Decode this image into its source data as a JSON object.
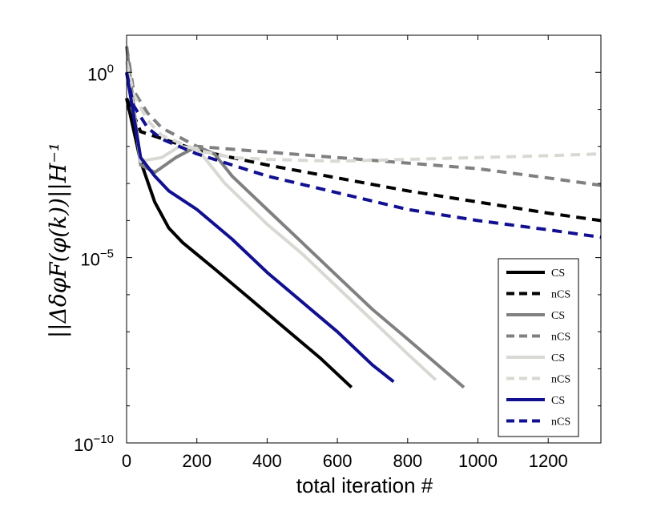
{
  "chart_data": {
    "type": "line",
    "title": "",
    "xlabel": "total iteration #",
    "ylabel": "||ΔδφF(φ(k))||H⁻¹",
    "yscale": "log",
    "xlim": [
      0,
      1350
    ],
    "ylim_exp": [
      -10,
      1
    ],
    "xticks": [
      0,
      200,
      400,
      600,
      800,
      1000,
      1200
    ],
    "xtick_labels": [
      "0",
      "200",
      "400",
      "600",
      "800",
      "1000",
      "1200"
    ],
    "yticks_exp": [
      0,
      -5,
      -10
    ],
    "ytick_base": "10",
    "ytick_exps": [
      "0",
      "−5",
      "−10"
    ],
    "legend_position": "bottom-right",
    "series": [
      {
        "name": "CS",
        "color": "#000000",
        "dash": false,
        "x": [
          0,
          40,
          80,
          120,
          160,
          250,
          350,
          450,
          550,
          640
        ],
        "log10_y": [
          -0.7,
          -2.4,
          -3.5,
          -4.2,
          -4.6,
          -5.3,
          -6.1,
          -6.9,
          -7.7,
          -8.5
        ]
      },
      {
        "name": "nCS",
        "color": "#000000",
        "dash": true,
        "x": [
          0,
          40,
          200,
          400,
          600,
          800,
          1000,
          1200,
          1350
        ],
        "log10_y": [
          -0.7,
          -1.6,
          -2.1,
          -2.5,
          -2.85,
          -3.2,
          -3.5,
          -3.8,
          -4.0
        ]
      },
      {
        "name": "CS",
        "color": "#808080",
        "dash": false,
        "x": [
          0,
          40,
          80,
          140,
          200,
          250,
          300,
          400,
          500,
          600,
          700,
          800,
          960
        ],
        "log10_y": [
          0.7,
          -2.5,
          -2.7,
          -2.3,
          -2.0,
          -2.2,
          -2.8,
          -3.7,
          -4.6,
          -5.5,
          -6.4,
          -7.2,
          -8.5
        ]
      },
      {
        "name": "nCS",
        "color": "#808080",
        "dash": true,
        "x": [
          0,
          20,
          60,
          100,
          200,
          400,
          600,
          800,
          1000,
          1200,
          1350
        ],
        "log10_y": [
          0.7,
          -0.5,
          -1.1,
          -1.5,
          -2.0,
          -2.15,
          -2.3,
          -2.45,
          -2.6,
          -2.85,
          -3.05
        ]
      },
      {
        "name": "CS",
        "color": "#d8d9d3",
        "dash": false,
        "x": [
          0,
          40,
          100,
          150,
          200,
          280,
          400,
          500,
          600,
          700,
          800,
          880
        ],
        "log10_y": [
          0.3,
          -2.4,
          -2.3,
          -2.0,
          -2.05,
          -3.0,
          -4.1,
          -4.9,
          -5.8,
          -6.7,
          -7.6,
          -8.3
        ]
      },
      {
        "name": "nCS",
        "color": "#d8d9d3",
        "dash": true,
        "x": [
          0,
          20,
          60,
          100,
          200,
          300,
          400,
          600,
          800,
          1000,
          1200,
          1350
        ],
        "log10_y": [
          0.3,
          -0.6,
          -1.3,
          -1.7,
          -2.1,
          -2.3,
          -2.35,
          -2.4,
          -2.35,
          -2.3,
          -2.25,
          -2.2
        ]
      },
      {
        "name": "CS",
        "color": "#101090",
        "dash": false,
        "x": [
          0,
          40,
          80,
          120,
          200,
          300,
          400,
          500,
          600,
          700,
          760
        ],
        "log10_y": [
          0.0,
          -2.3,
          -2.8,
          -3.2,
          -3.7,
          -4.5,
          -5.4,
          -6.2,
          -7.0,
          -7.9,
          -8.35
        ]
      },
      {
        "name": "nCS",
        "color": "#101090",
        "dash": true,
        "x": [
          0,
          20,
          60,
          100,
          200,
          400,
          600,
          800,
          1000,
          1200,
          1350
        ],
        "log10_y": [
          0.0,
          -0.9,
          -1.5,
          -1.8,
          -2.2,
          -2.8,
          -3.25,
          -3.7,
          -4.0,
          -4.25,
          -4.45
        ]
      }
    ]
  }
}
